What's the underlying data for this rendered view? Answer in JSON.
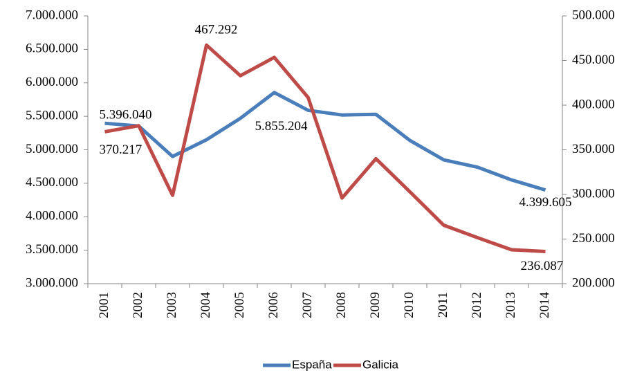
{
  "chart_data": {
    "type": "line",
    "categories": [
      "2001",
      "2002",
      "2003",
      "2004",
      "2005",
      "2006",
      "2007",
      "2008",
      "2009",
      "2010",
      "2011",
      "2012",
      "2013",
      "2014"
    ],
    "series": [
      {
        "name": "España",
        "color": "#4a7ebb",
        "values": [
          5396040,
          5355000,
          4900000,
          5150000,
          5470000,
          5855204,
          5590000,
          5520000,
          5530000,
          5140000,
          4850000,
          4740000,
          4550000,
          4399605
        ],
        "value_labels": [
          "5.396.040",
          null,
          null,
          null,
          null,
          "5.855.204",
          null,
          null,
          null,
          null,
          null,
          null,
          null,
          "4.399.605"
        ]
      },
      {
        "name": "Galicia",
        "color": "#be4b48",
        "axis": "y2",
        "values": [
          370217,
          377000,
          299000,
          467292,
          433000,
          453500,
          408500,
          296000,
          340000,
          303000,
          265500,
          251500,
          238000,
          236087
        ],
        "value_labels": [
          "370.217",
          null,
          null,
          "467.292",
          null,
          null,
          null,
          null,
          null,
          null,
          null,
          null,
          null,
          "236.087"
        ]
      }
    ],
    "ylim": [
      3000000,
      7000000
    ],
    "yticks": [
      {
        "value": 3000000,
        "label": "3.000.000"
      },
      {
        "value": 3500000,
        "label": "3.500.000"
      },
      {
        "value": 4000000,
        "label": "4.000.000"
      },
      {
        "value": 4500000,
        "label": "4.500.000"
      },
      {
        "value": 5000000,
        "label": "5.000.000"
      },
      {
        "value": 5500000,
        "label": "5.500.000"
      },
      {
        "value": 6000000,
        "label": "6.000.000"
      },
      {
        "value": 6500000,
        "label": "6.500.000"
      },
      {
        "value": 7000000,
        "label": "7.000.000"
      }
    ],
    "y2lim": [
      200000,
      500000
    ],
    "y2ticks": [
      {
        "value": 200000,
        "label": "200.000"
      },
      {
        "value": 250000,
        "label": "250.000"
      },
      {
        "value": 300000,
        "label": "300.000"
      },
      {
        "value": 350000,
        "label": "350.000"
      },
      {
        "value": 400000,
        "label": "400.000"
      },
      {
        "value": 450000,
        "label": "450.000"
      },
      {
        "value": 500000,
        "label": "500.000"
      }
    ],
    "grid": false,
    "legend": "bottom"
  }
}
